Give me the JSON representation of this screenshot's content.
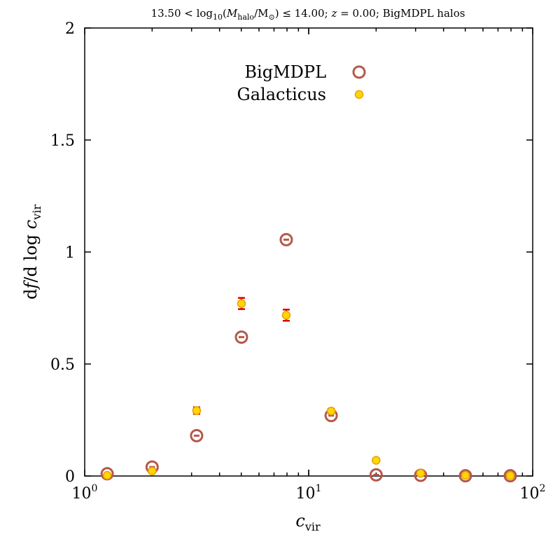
{
  "chart_data": {
    "type": "scatter",
    "title": "13.50 < log10(Mhalo/M⊙) ≤ 14.00; z = 0.00; BigMDPL halos",
    "xlabel": "c_vir",
    "ylabel": "df/d log c_vir",
    "xscale": "log",
    "xlim": [
      1,
      100
    ],
    "ylim": [
      0,
      2
    ],
    "x_tick_labels": [
      "10^0",
      "10^1",
      "10^2"
    ],
    "y_tick_labels": [
      "0",
      "0.5",
      "1",
      "1.5",
      "2"
    ],
    "y_ticks": [
      0,
      0.5,
      1,
      1.5,
      2
    ],
    "legend_position": "top-center",
    "series": [
      {
        "name": "BigMDPL",
        "marker": "open-circle",
        "color": "#b5584a",
        "points": [
          {
            "x": 1.26,
            "y": 0.01,
            "err": 0.005
          },
          {
            "x": 2.0,
            "y": 0.04,
            "err": 0.005
          },
          {
            "x": 3.16,
            "y": 0.18,
            "err": 0.005
          },
          {
            "x": 5.01,
            "y": 0.62,
            "err": 0.005
          },
          {
            "x": 7.94,
            "y": 1.055,
            "err": 0.005
          },
          {
            "x": 12.6,
            "y": 0.27,
            "err": 0.005
          },
          {
            "x": 20.0,
            "y": 0.005,
            "err": 0.005
          },
          {
            "x": 31.6,
            "y": 0.003,
            "err": 0.0
          },
          {
            "x": 50.1,
            "y": 0.001,
            "err": 0.0
          },
          {
            "x": 79.4,
            "y": 0.001,
            "err": 0.0
          }
        ]
      },
      {
        "name": "Galacticus",
        "marker": "filled-circle",
        "color": "#ffd700",
        "edge_color": "#e8a000",
        "error_color": "#dd0000",
        "points": [
          {
            "x": 1.26,
            "y": 0.003,
            "err": 0.002
          },
          {
            "x": 2.0,
            "y": 0.022,
            "err": 0.004
          },
          {
            "x": 3.16,
            "y": 0.292,
            "err": 0.015
          },
          {
            "x": 5.01,
            "y": 0.77,
            "err": 0.025
          },
          {
            "x": 7.94,
            "y": 0.718,
            "err": 0.025
          },
          {
            "x": 12.6,
            "y": 0.29,
            "err": 0.01
          },
          {
            "x": 20.0,
            "y": 0.07,
            "err": 0.004
          },
          {
            "x": 31.6,
            "y": 0.012,
            "err": 0.002
          },
          {
            "x": 50.1,
            "y": 0.003,
            "err": 0.001
          },
          {
            "x": 79.4,
            "y": 0.002,
            "err": 0.001
          }
        ]
      }
    ]
  }
}
